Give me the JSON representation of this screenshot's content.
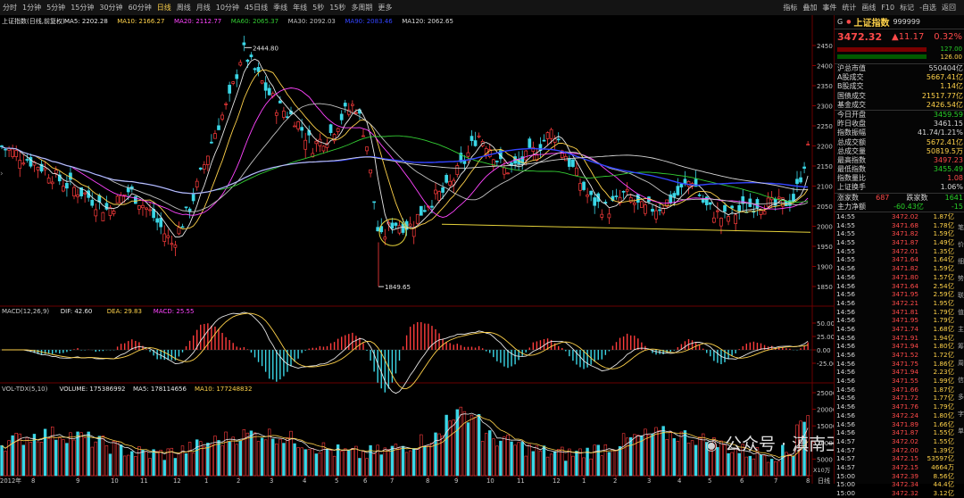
{
  "tabs": [
    "分时",
    "1分钟",
    "5分钟",
    "15分钟",
    "30分钟",
    "60分钟",
    "日线",
    "周线",
    "月线",
    "10分钟",
    "45日线",
    "季线",
    "年线",
    "5秒",
    "15秒",
    "多周期",
    "更多"
  ],
  "active_tab": "日线",
  "right_menu": [
    "指标",
    "叠加",
    "事件",
    "统计",
    "画线",
    "F10",
    "标记",
    "-自选",
    "返回"
  ],
  "main_title": "上证指数(日线,前复权)",
  "ma_legend": [
    {
      "label": "MA5: 2202.28",
      "color": "#e6e6e6"
    },
    {
      "label": "MA10: 2166.27",
      "color": "#ffd24a"
    },
    {
      "label": "MA20: 2112.77",
      "color": "#ff44ff"
    },
    {
      "label": "MA60: 2065.37",
      "color": "#33cc33"
    },
    {
      "label": "MA30: 2092.03",
      "color": "#c0c0c0"
    },
    {
      "label": "MA90: 2083.46",
      "color": "#3344ff"
    },
    {
      "label": "MA120: 2062.65",
      "color": "#d6d6d6"
    }
  ],
  "peak_label": "2444.80",
  "low_label": "1849.65",
  "price_axis": [
    "2450",
    "2400",
    "2350",
    "2300",
    "2250",
    "2200",
    "2150",
    "2100",
    "2050",
    "2000",
    "1950",
    "1900",
    "1850"
  ],
  "macd_legend": [
    {
      "label": "MACD(12,26,9)",
      "color": "#c8c8c8"
    },
    {
      "label": "DIF: 42.60",
      "color": "#e6e6e6"
    },
    {
      "label": "DEA: 29.83",
      "color": "#ffd24a"
    },
    {
      "label": "MACD: 25.55",
      "color": "#ff44ff"
    }
  ],
  "macd_axis": [
    "50.00",
    "25.00",
    "0.00",
    "-25.00"
  ],
  "vol_legend": [
    {
      "label": "VOL-TDX(5,10)",
      "color": "#c8c8c8"
    },
    {
      "label": "VOLUME: 175386992",
      "color": "#e6e6e6"
    },
    {
      "label": "MA5: 178114656",
      "color": "#e6e6e6"
    },
    {
      "label": "MA10: 177248832",
      "color": "#ffd24a"
    }
  ],
  "vol_axis": [
    "25000",
    "20000",
    "15000",
    "10000",
    "5000"
  ],
  "vol_unit": "X10万",
  "month_labels": [
    "2012年",
    "8",
    "9",
    "10",
    "11",
    "12",
    "1",
    "2",
    "3",
    "4",
    "5",
    "6",
    "7",
    "8",
    "9",
    "10",
    "11",
    "12",
    "1",
    "2",
    "3",
    "4",
    "5",
    "6",
    "7",
    "8"
  ],
  "right_edge_label": "日线",
  "watermark": "公众号 · 滇南王",
  "side": {
    "code_prefix": "G",
    "name": "上证指数",
    "code": "999999",
    "price": "3472.32",
    "change": "▲11.17",
    "pct": "0.32%",
    "bar1": "127.00",
    "bar2": "126.00",
    "stats": [
      {
        "k": "沪总市值",
        "v": "550404亿",
        "kc": "w",
        "vc": "w"
      },
      {
        "k": "A股成交",
        "v": "5667.41亿",
        "kc": "w",
        "vc": "y"
      },
      {
        "k": "B股成交",
        "v": "1.14亿",
        "kc": "w",
        "vc": "y"
      },
      {
        "k": "国债成交",
        "v": "21517.77亿",
        "kc": "w",
        "vc": "y"
      },
      {
        "k": "基金成交",
        "v": "2426.54亿",
        "kc": "w",
        "vc": "y"
      },
      {
        "k": "今日开盘",
        "v": "3459.59",
        "kc": "w",
        "vc": "g"
      },
      {
        "k": "昨日收盘",
        "v": "3461.15",
        "kc": "w",
        "vc": "w"
      },
      {
        "k": "指数振幅",
        "v": "41.74/1.21%",
        "kc": "w",
        "vc": "w"
      },
      {
        "k": "总成交额",
        "v": "5672.41亿",
        "kc": "w",
        "vc": "y"
      },
      {
        "k": "总成交量",
        "v": "50819.5万",
        "kc": "w",
        "vc": "y"
      },
      {
        "k": "最高指数",
        "v": "3497.23",
        "kc": "w",
        "vc": "r"
      },
      {
        "k": "最低指数",
        "v": "3455.49",
        "kc": "w",
        "vc": "g"
      },
      {
        "k": "指数量比",
        "v": "1.08",
        "kc": "w",
        "vc": "r"
      },
      {
        "k": "上证换手",
        "v": "1.06%",
        "kc": "w",
        "vc": "w"
      }
    ],
    "up_label": "涨家数",
    "up_value": "687",
    "down_label": "跌家数",
    "down_value": "1641",
    "flow_label": "主力净额",
    "flow_value": "-60.43亿",
    "flow_tail": "-15",
    "ticks": [
      [
        "14:55",
        "3472.02",
        "1.87亿"
      ],
      [
        "14:55",
        "3471.68",
        "1.78亿"
      ],
      [
        "14:55",
        "3471.82",
        "1.59亿"
      ],
      [
        "14:55",
        "3471.87",
        "1.49亿"
      ],
      [
        "14:55",
        "3472.01",
        "1.35亿"
      ],
      [
        "14:55",
        "3471.64",
        "1.64亿"
      ],
      [
        "14:56",
        "3471.82",
        "1.59亿"
      ],
      [
        "14:56",
        "3471.80",
        "1.57亿"
      ],
      [
        "14:56",
        "3471.64",
        "2.54亿"
      ],
      [
        "14:56",
        "3471.95",
        "2.59亿"
      ],
      [
        "14:56",
        "3472.21",
        "1.95亿"
      ],
      [
        "14:56",
        "3471.81",
        "1.79亿"
      ],
      [
        "14:56",
        "3471.95",
        "1.79亿"
      ],
      [
        "14:56",
        "3471.74",
        "1.68亿"
      ],
      [
        "14:56",
        "3471.91",
        "1.94亿"
      ],
      [
        "14:56",
        "3471.94",
        "1.80亿"
      ],
      [
        "14:56",
        "3471.52",
        "1.72亿"
      ],
      [
        "14:56",
        "3471.75",
        "1.86亿"
      ],
      [
        "14:56",
        "3471.94",
        "2.23亿"
      ],
      [
        "14:56",
        "3471.55",
        "1.99亿"
      ],
      [
        "14:56",
        "3471.66",
        "1.87亿"
      ],
      [
        "14:56",
        "3471.72",
        "1.77亿"
      ],
      [
        "14:56",
        "3471.76",
        "1.79亿"
      ],
      [
        "14:56",
        "3472.24",
        "1.80亿"
      ],
      [
        "14:56",
        "3471.89",
        "1.66亿"
      ],
      [
        "14:56",
        "3471.87",
        "1.55亿"
      ],
      [
        "14:57",
        "3472.02",
        "1.55亿"
      ],
      [
        "14:57",
        "3472.00",
        "1.39亿"
      ],
      [
        "14:57",
        "3472.15",
        "53597亿"
      ],
      [
        "14:57",
        "3472.15",
        "4664万"
      ],
      [
        "15:00",
        "3472.39",
        "8.56亿"
      ],
      [
        "15:00",
        "3472.34",
        "44.4亿"
      ],
      [
        "15:00",
        "3472.32",
        "3.12亿"
      ]
    ],
    "side_tabs": [
      "笔",
      "价",
      "细",
      "势",
      "联",
      "值",
      "主",
      "筹",
      "周",
      "信",
      "多",
      "字",
      "单"
    ]
  }
}
